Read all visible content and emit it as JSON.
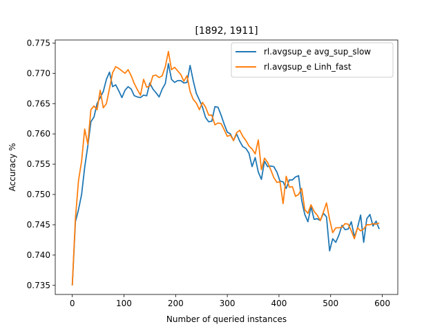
{
  "chart_data": {
    "type": "line",
    "title": "[1892, 1911]",
    "xlabel": "Number of queried instances",
    "ylabel": "Accuracy %",
    "xlim": [
      -33,
      630
    ],
    "ylim": [
      0.7335,
      0.7755
    ],
    "xticks": [
      0,
      100,
      200,
      300,
      400,
      500,
      600
    ],
    "yticks": [
      0.735,
      0.74,
      0.745,
      0.75,
      0.755,
      0.76,
      0.765,
      0.77,
      0.775
    ],
    "ytick_labels": [
      "0.735",
      "0.740",
      "0.745",
      "0.750",
      "0.755",
      "0.760",
      "0.765",
      "0.770",
      "0.775"
    ],
    "grid": false,
    "legend_position": "top-right",
    "x": [
      0,
      6,
      12,
      18,
      24,
      30,
      36,
      42,
      48,
      54,
      60,
      66,
      72,
      78,
      84,
      90,
      96,
      102,
      108,
      114,
      120,
      126,
      132,
      138,
      144,
      150,
      156,
      162,
      168,
      174,
      180,
      186,
      192,
      198,
      204,
      210,
      216,
      222,
      228,
      234,
      240,
      246,
      252,
      258,
      264,
      270,
      276,
      282,
      288,
      294,
      300,
      306,
      312,
      318,
      324,
      330,
      336,
      342,
      348,
      354,
      360,
      366,
      372,
      378,
      384,
      390,
      396,
      402,
      408,
      414,
      420,
      426,
      432,
      438,
      444,
      450,
      456,
      462,
      468,
      474,
      480,
      486,
      492,
      498,
      504,
      510,
      516,
      522,
      528,
      534,
      540,
      546,
      552,
      558,
      564,
      570,
      576,
      582,
      588,
      594
    ],
    "series": [
      {
        "name": "rl.avgsup_e avg_sup_slow",
        "color": "#1f77b4",
        "values": [
          0.735,
          0.7455,
          0.7475,
          0.75,
          0.7545,
          0.758,
          0.762,
          0.7628,
          0.765,
          0.766,
          0.767,
          0.769,
          0.7702,
          0.7678,
          0.7681,
          0.7671,
          0.766,
          0.7672,
          0.7678,
          0.7674,
          0.7663,
          0.7661,
          0.766,
          0.7664,
          0.7663,
          0.7684,
          0.7674,
          0.7668,
          0.7661,
          0.7674,
          0.7683,
          0.7716,
          0.769,
          0.7685,
          0.7688,
          0.7688,
          0.7684,
          0.7685,
          0.7713,
          0.7688,
          0.7667,
          0.7656,
          0.7644,
          0.7627,
          0.762,
          0.7621,
          0.7645,
          0.7644,
          0.7631,
          0.7616,
          0.7603,
          0.76,
          0.7589,
          0.76,
          0.7588,
          0.7579,
          0.7576,
          0.7568,
          0.7546,
          0.7561,
          0.7537,
          0.7525,
          0.7555,
          0.7546,
          0.7547,
          0.7546,
          0.7537,
          0.7522,
          0.7521,
          0.751,
          0.7524,
          0.7524,
          0.7529,
          0.7531,
          0.749,
          0.7467,
          0.7455,
          0.748,
          0.7459,
          0.746,
          0.7457,
          0.7469,
          0.7463,
          0.7407,
          0.7427,
          0.7421,
          0.7433,
          0.7449,
          0.7442,
          0.7443,
          0.7455,
          0.743,
          0.7445,
          0.7466,
          0.7421,
          0.746,
          0.7467,
          0.7448,
          0.7456,
          0.7443
        ]
      },
      {
        "name": "rl.avgsup_e Linh_fast",
        "color": "#ff7f0e",
        "values": [
          0.735,
          0.746,
          0.7523,
          0.7555,
          0.7608,
          0.7583,
          0.764,
          0.7646,
          0.764,
          0.7672,
          0.7643,
          0.765,
          0.7675,
          0.7701,
          0.7711,
          0.7708,
          0.7704,
          0.77,
          0.7706,
          0.7696,
          0.7683,
          0.7673,
          0.7664,
          0.769,
          0.7677,
          0.7679,
          0.7696,
          0.7697,
          0.7693,
          0.7696,
          0.7711,
          0.7736,
          0.7706,
          0.771,
          0.7704,
          0.7698,
          0.7687,
          0.7696,
          0.767,
          0.7657,
          0.7651,
          0.764,
          0.7652,
          0.7644,
          0.7631,
          0.7631,
          0.7615,
          0.7618,
          0.7617,
          0.7607,
          0.7596,
          0.7598,
          0.7589,
          0.7602,
          0.7606,
          0.7596,
          0.7589,
          0.758,
          0.7575,
          0.7567,
          0.759,
          0.7541,
          0.756,
          0.7553,
          0.7541,
          0.7528,
          0.752,
          0.7521,
          0.7485,
          0.753,
          0.7512,
          0.7513,
          0.7497,
          0.75,
          0.751,
          0.7475,
          0.7469,
          0.7483,
          0.7472,
          0.7466,
          0.7457,
          0.7471,
          0.7486,
          0.7459,
          0.7437,
          0.7445,
          0.7445,
          0.7446,
          0.7452,
          0.7451,
          0.744,
          0.7427,
          0.7445,
          0.744,
          0.7443,
          0.745,
          0.745,
          0.7452,
          0.7451,
          0.7453
        ]
      }
    ]
  }
}
